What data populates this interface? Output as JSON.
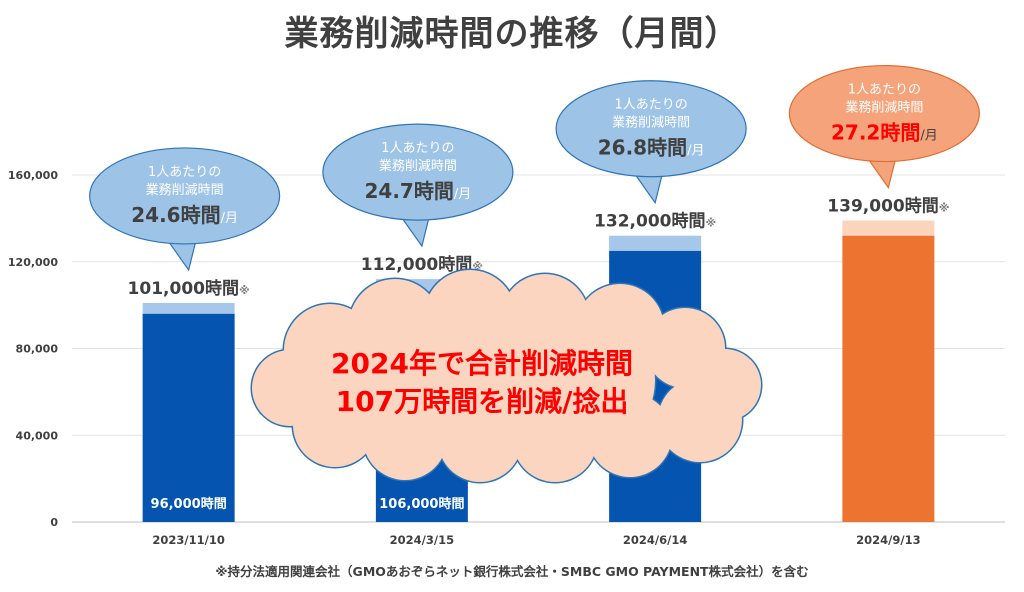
{
  "title": "業務削減時間の推移（月間）",
  "footnote": "※持分法適用関連会社（GMOあおぞらネット銀行株式会社・SMBC GMO PAYMENT株式会社）を含む",
  "callout": {
    "line1": "2024年で合計削減時間",
    "line2": "107万時間を削減/捻出"
  },
  "colors": {
    "blue_main": "#0555b0",
    "blue_light": "#a6c6ea",
    "orange_main": "#ec7430",
    "orange_light": "#fbd4bd",
    "bubble_blue_fill": "#9dc3e6",
    "bubble_blue_stroke": "#2e75b6",
    "bubble_orange_fill": "#f4a37b",
    "bubble_orange_stroke": "#e06d32",
    "cloud_fill": "#fbd5c0",
    "cloud_stroke": "#2e75b6"
  },
  "chart_data": {
    "type": "bar",
    "stacked": true,
    "categories": [
      "2023/11/10",
      "2024/3/15",
      "2024/6/14",
      "2024/9/13"
    ],
    "series": [
      {
        "values": [
          96000,
          106000,
          125000,
          132000
        ]
      },
      {
        "values": [
          5000,
          6000,
          7000,
          7000
        ]
      }
    ],
    "totals": [
      101000,
      112000,
      132000,
      139000
    ],
    "total_labels": [
      "101,000時間",
      "112,000時間",
      "132,000時間",
      "139,000時間"
    ],
    "total_mark": "※",
    "base_labels": [
      "96,000時間",
      "106,000時間",
      "",
      ""
    ],
    "per_person": {
      "line1": "1人あたりの",
      "line2": "業務削減時間",
      "values": [
        "24.6時間",
        "24.7時間",
        "26.8時間",
        "27.2時間"
      ],
      "unit": "/月"
    },
    "ylim": [
      0,
      160000
    ],
    "yticks": [
      0,
      40000,
      80000,
      120000,
      160000
    ],
    "ytick_labels": [
      "0",
      "40,000",
      "80,000",
      "120,000",
      "160,000"
    ],
    "grid": true,
    "highlight_index": 3
  }
}
